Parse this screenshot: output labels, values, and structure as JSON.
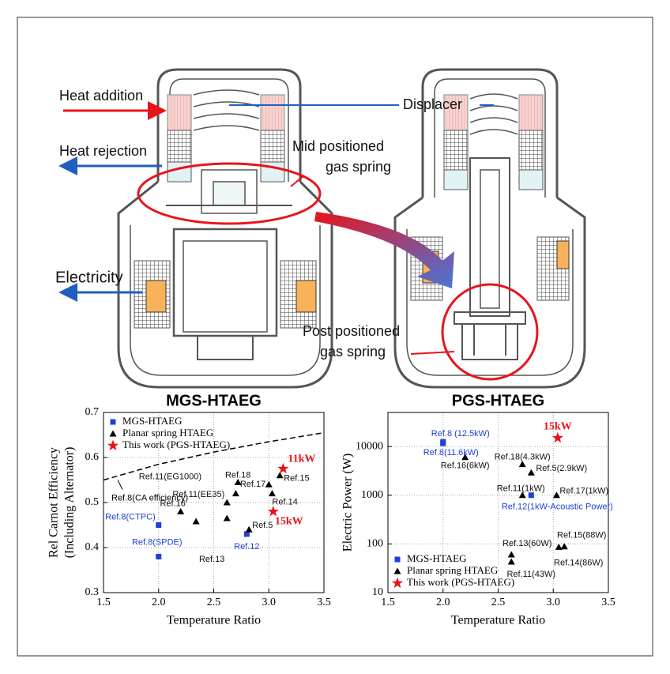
{
  "diagram": {
    "labels": {
      "heat_addition": "Heat addition",
      "heat_rejection": "Heat rejection",
      "displacer": "Displacer",
      "mid_spring": [
        "Mid positioned",
        "gas spring"
      ],
      "electricity": "Electricity",
      "post_spring": [
        "Post positioned",
        "gas spring"
      ]
    }
  },
  "chart_data": [
    {
      "type": "scatter",
      "title": "MGS-HTAEG",
      "xlabel": "Temperature Ratio",
      "ylabel": [
        "Rel Carnot Efficiency",
        "(Including Alternator)"
      ],
      "xlim": [
        1.5,
        3.5
      ],
      "ylim": [
        0.3,
        0.7
      ],
      "xticks": [
        1.5,
        {
          "value": 2,
          "label": "2.0"
        },
        2.5,
        {
          "value": 3,
          "label": "3.0"
        },
        3.5
      ],
      "yticks": [
        0.3,
        0.4,
        0.5,
        0.6,
        0.7
      ],
      "grid": true,
      "legend": "upper left",
      "curve": {
        "label": "Ref.8(CA efficiency)",
        "style": "dashed",
        "color": "#000000",
        "x": [
          1.5,
          2,
          2.5,
          3,
          3.5
        ],
        "values": [
          0.55,
          0.585,
          0.612,
          0.635,
          0.655
        ]
      },
      "series": [
        {
          "name": "MGS-HTAEG",
          "color": "#1f3fd8",
          "marker": "square",
          "x": [
            2.0,
            2.0,
            2.8
          ],
          "values": [
            0.45,
            0.38,
            0.43
          ],
          "labels": [
            "Ref.8(CTPC)",
            "Ref.8(SPDE)",
            "Ref.12"
          ]
        },
        {
          "name": "Planar spring HTAEG",
          "color": "#000000",
          "marker": "triangle",
          "x": [
            2.2,
            2.34,
            2.62,
            2.62,
            2.7,
            2.72,
            3.0,
            3.1,
            3.03,
            2.82
          ],
          "values": [
            0.48,
            0.458,
            0.465,
            0.5,
            0.52,
            0.545,
            0.54,
            0.56,
            0.52,
            0.44
          ],
          "labels": [
            "Ref.16",
            "Ref.13",
            null,
            "Ref.11(EE35)",
            "Ref.11(EG1000)",
            "Ref.18",
            "Ref.17",
            "Ref.15",
            "Ref.14",
            "Ref.5"
          ]
        },
        {
          "name": "This work (PGS-HTAEG)",
          "color": "#e8141b",
          "marker": "star",
          "x": [
            3.13,
            3.04
          ],
          "values": [
            0.575,
            0.48
          ],
          "labels": [
            "11kW",
            "15kW"
          ]
        }
      ]
    },
    {
      "type": "scatter",
      "title": "PGS-HTAEG",
      "xlabel": "Temperature Ratio",
      "ylabel": [
        "Electric Power (W)"
      ],
      "xlim": [
        1.5,
        3.5
      ],
      "ylim": [
        10,
        50000
      ],
      "log_y": true,
      "xticks": [
        1.5,
        {
          "value": 2,
          "label": "2.0"
        },
        2.5,
        {
          "value": 3,
          "label": "3.0"
        },
        3.5
      ],
      "yticks": [
        10,
        100,
        1000,
        10000
      ],
      "grid": true,
      "legend": "lower left",
      "series": [
        {
          "name": "MGS-HTAEG",
          "color": "#1f3fd8",
          "marker": "square",
          "x": [
            2.0,
            2.0,
            2.8
          ],
          "values": [
            12500,
            11600,
            1000
          ],
          "labels": [
            "Ref.8 (12.5kW)",
            "Ref.8(11.6kW)",
            "Ref.12(1kW-Acoustic Power)"
          ]
        },
        {
          "name": "Planar spring HTAEG",
          "color": "#000000",
          "marker": "triangle",
          "x": [
            2.2,
            2.72,
            2.8,
            2.72,
            3.03,
            2.62,
            2.62,
            3.1,
            3.05
          ],
          "values": [
            6000,
            4300,
            2900,
            1000,
            1000,
            60,
            43,
            88,
            86
          ],
          "labels": [
            "Ref.16(6kW)",
            "Ref.18(4.3kW)",
            "Ref.5(2.9kW)",
            "Ref.11(1kW)",
            "Ref.17(1kW)",
            "Ref.13(60W)",
            "Ref.11(43W)",
            "Ref.15(88W)",
            "Ref.14(86W)"
          ]
        },
        {
          "name": "This work (PGS-HTAEG)",
          "color": "#e8141b",
          "marker": "star",
          "x": [
            3.04
          ],
          "values": [
            15000
          ],
          "labels": [
            "15kW"
          ]
        }
      ]
    }
  ]
}
